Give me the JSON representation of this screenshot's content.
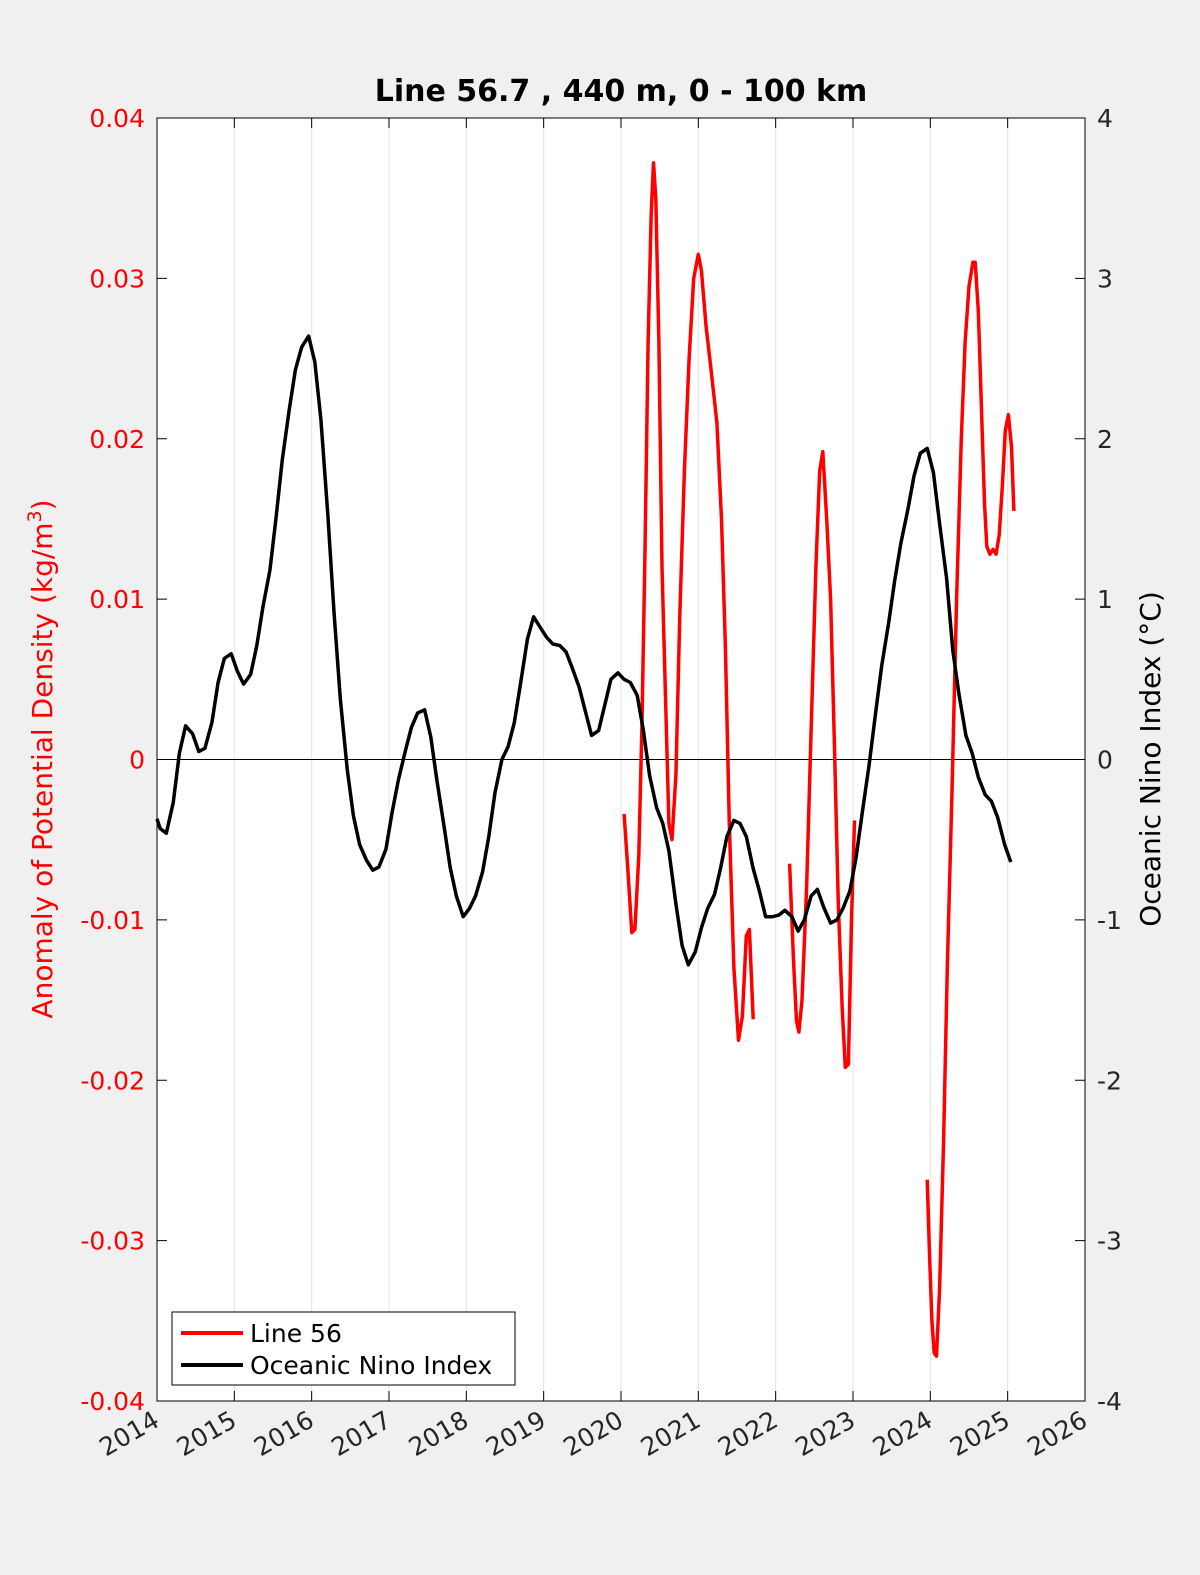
{
  "chart_data": {
    "type": "line",
    "title": "Line 56.7 , 440 m, 0 - 100 km",
    "xlim": [
      2014,
      2026
    ],
    "x_ticks": [
      "2014",
      "2015",
      "2016",
      "2017",
      "2018",
      "2019",
      "2020",
      "2021",
      "2022",
      "2023",
      "2024",
      "2025",
      "2026"
    ],
    "y_left": {
      "label": "Anomaly of Potential Density (kg/m",
      "label_sup": "3",
      "label_end": ")",
      "color": "#ff0000",
      "lim": [
        -0.04,
        0.04
      ],
      "ticks": [
        "-0.04",
        "-0.03",
        "-0.02",
        "-0.01",
        "0",
        "0.01",
        "0.02",
        "0.03",
        "0.04"
      ]
    },
    "y_right": {
      "label": "Oceanic Nino Index (°C)",
      "color": "#000000",
      "lim": [
        -4,
        4
      ],
      "ticks": [
        "-4",
        "-3",
        "-2",
        "-1",
        "0",
        "1",
        "2",
        "3",
        "4"
      ]
    },
    "grid": "vertical",
    "legend_position": "bottom-left",
    "series": [
      {
        "name": "Line 56",
        "axis": "left",
        "color": "#ff0000",
        "segments": [
          [
            [
              2020.04,
              -0.0034
            ],
            [
              2020.09,
              -0.007
            ],
            [
              2020.14,
              -0.0108
            ],
            [
              2020.18,
              -0.0106
            ],
            [
              2020.23,
              -0.006
            ],
            [
              2020.27,
              0.002
            ],
            [
              2020.31,
              0.013
            ],
            [
              2020.35,
              0.026
            ],
            [
              2020.39,
              0.034
            ],
            [
              2020.42,
              0.0372
            ],
            [
              2020.45,
              0.035
            ],
            [
              2020.49,
              0.026
            ],
            [
              2020.53,
              0.012
            ],
            [
              2020.58,
              0.003
            ],
            [
              2020.62,
              -0.004
            ],
            [
              2020.66,
              -0.005
            ],
            [
              2020.71,
              -0.001
            ],
            [
              2020.76,
              0.009
            ],
            [
              2020.82,
              0.018
            ],
            [
              2020.88,
              0.025
            ],
            [
              2020.94,
              0.03
            ],
            [
              2021.0,
              0.0315
            ],
            [
              2021.04,
              0.0305
            ],
            [
              2021.1,
              0.027
            ],
            [
              2021.16,
              0.0245
            ],
            [
              2021.24,
              0.021
            ],
            [
              2021.3,
              0.015
            ],
            [
              2021.35,
              0.007
            ],
            [
              2021.4,
              -0.004
            ],
            [
              2021.46,
              -0.013
            ],
            [
              2021.52,
              -0.0175
            ],
            [
              2021.57,
              -0.016
            ],
            [
              2021.62,
              -0.011
            ],
            [
              2021.66,
              -0.0106
            ],
            [
              2021.71,
              -0.0162
            ]
          ],
          [
            [
              2022.18,
              -0.0065
            ],
            [
              2022.23,
              -0.0125
            ],
            [
              2022.27,
              -0.0163
            ],
            [
              2022.3,
              -0.017
            ],
            [
              2022.34,
              -0.015
            ],
            [
              2022.4,
              -0.008
            ],
            [
              2022.46,
              0.002
            ],
            [
              2022.52,
              0.012
            ],
            [
              2022.57,
              0.018
            ],
            [
              2022.61,
              0.0192
            ],
            [
              2022.66,
              0.015
            ],
            [
              2022.71,
              0.01
            ],
            [
              2022.76,
              0.001
            ],
            [
              2022.81,
              -0.009
            ],
            [
              2022.86,
              -0.0155
            ],
            [
              2022.9,
              -0.0192
            ],
            [
              2022.94,
              -0.019
            ],
            [
              2022.98,
              -0.01
            ],
            [
              2023.02,
              -0.0038
            ]
          ],
          [
            [
              2023.96,
              -0.0262
            ],
            [
              2023.99,
              -0.031
            ],
            [
              2024.02,
              -0.035
            ],
            [
              2024.05,
              -0.037
            ],
            [
              2024.08,
              -0.0372
            ],
            [
              2024.12,
              -0.033
            ],
            [
              2024.17,
              -0.024
            ],
            [
              2024.22,
              -0.013
            ],
            [
              2024.28,
              -0.002
            ],
            [
              2024.34,
              0.01
            ],
            [
              2024.4,
              0.02
            ],
            [
              2024.45,
              0.026
            ],
            [
              2024.5,
              0.0295
            ],
            [
              2024.55,
              0.031
            ],
            [
              2024.58,
              0.031
            ],
            [
              2024.62,
              0.028
            ],
            [
              2024.66,
              0.022
            ],
            [
              2024.7,
              0.016
            ],
            [
              2024.73,
              0.0133
            ],
            [
              2024.77,
              0.0128
            ],
            [
              2024.81,
              0.0131
            ],
            [
              2024.85,
              0.0128
            ],
            [
              2024.89,
              0.014
            ],
            [
              2024.93,
              0.017
            ],
            [
              2024.97,
              0.0205
            ],
            [
              2025.01,
              0.0215
            ],
            [
              2025.05,
              0.0195
            ],
            [
              2025.08,
              0.0155
            ]
          ]
        ]
      },
      {
        "name": "Oceanic Nino Index",
        "axis": "right",
        "color": "#000000",
        "points": [
          [
            2014.0,
            -0.37
          ],
          [
            2014.04,
            -0.43
          ],
          [
            2014.12,
            -0.46
          ],
          [
            2014.21,
            -0.27
          ],
          [
            2014.29,
            0.04
          ],
          [
            2014.37,
            0.21
          ],
          [
            2014.46,
            0.16
          ],
          [
            2014.54,
            0.05
          ],
          [
            2014.62,
            0.07
          ],
          [
            2014.71,
            0.23
          ],
          [
            2014.79,
            0.48
          ],
          [
            2014.87,
            0.63
          ],
          [
            2014.96,
            0.66
          ],
          [
            2015.04,
            0.55
          ],
          [
            2015.12,
            0.47
          ],
          [
            2015.21,
            0.53
          ],
          [
            2015.29,
            0.71
          ],
          [
            2015.37,
            0.95
          ],
          [
            2015.46,
            1.18
          ],
          [
            2015.54,
            1.51
          ],
          [
            2015.62,
            1.87
          ],
          [
            2015.71,
            2.18
          ],
          [
            2015.79,
            2.43
          ],
          [
            2015.87,
            2.57
          ],
          [
            2015.96,
            2.64
          ],
          [
            2016.04,
            2.48
          ],
          [
            2016.12,
            2.12
          ],
          [
            2016.21,
            1.52
          ],
          [
            2016.29,
            0.91
          ],
          [
            2016.37,
            0.38
          ],
          [
            2016.46,
            -0.06
          ],
          [
            2016.54,
            -0.35
          ],
          [
            2016.62,
            -0.53
          ],
          [
            2016.71,
            -0.63
          ],
          [
            2016.79,
            -0.69
          ],
          [
            2016.87,
            -0.67
          ],
          [
            2016.96,
            -0.56
          ],
          [
            2017.04,
            -0.33
          ],
          [
            2017.12,
            -0.13
          ],
          [
            2017.21,
            0.05
          ],
          [
            2017.29,
            0.2
          ],
          [
            2017.37,
            0.29
          ],
          [
            2017.46,
            0.31
          ],
          [
            2017.54,
            0.14
          ],
          [
            2017.62,
            -0.13
          ],
          [
            2017.71,
            -0.41
          ],
          [
            2017.79,
            -0.67
          ],
          [
            2017.87,
            -0.85
          ],
          [
            2017.96,
            -0.98
          ],
          [
            2018.04,
            -0.93
          ],
          [
            2018.12,
            -0.85
          ],
          [
            2018.21,
            -0.7
          ],
          [
            2018.29,
            -0.48
          ],
          [
            2018.37,
            -0.21
          ],
          [
            2018.46,
            0.0
          ],
          [
            2018.54,
            0.08
          ],
          [
            2018.62,
            0.23
          ],
          [
            2018.71,
            0.5
          ],
          [
            2018.79,
            0.75
          ],
          [
            2018.87,
            0.89
          ],
          [
            2018.96,
            0.82
          ],
          [
            2019.04,
            0.76
          ],
          [
            2019.12,
            0.72
          ],
          [
            2019.21,
            0.71
          ],
          [
            2019.29,
            0.67
          ],
          [
            2019.37,
            0.57
          ],
          [
            2019.46,
            0.45
          ],
          [
            2019.54,
            0.3
          ],
          [
            2019.62,
            0.15
          ],
          [
            2019.71,
            0.18
          ],
          [
            2019.79,
            0.34
          ],
          [
            2019.87,
            0.5
          ],
          [
            2019.96,
            0.54
          ],
          [
            2020.04,
            0.5
          ],
          [
            2020.12,
            0.48
          ],
          [
            2020.21,
            0.4
          ],
          [
            2020.29,
            0.18
          ],
          [
            2020.37,
            -0.1
          ],
          [
            2020.46,
            -0.3
          ],
          [
            2020.54,
            -0.4
          ],
          [
            2020.62,
            -0.57
          ],
          [
            2020.71,
            -0.9
          ],
          [
            2020.79,
            -1.16
          ],
          [
            2020.87,
            -1.28
          ],
          [
            2020.96,
            -1.2
          ],
          [
            2021.04,
            -1.05
          ],
          [
            2021.12,
            -0.93
          ],
          [
            2021.21,
            -0.84
          ],
          [
            2021.29,
            -0.67
          ],
          [
            2021.37,
            -0.48
          ],
          [
            2021.46,
            -0.38
          ],
          [
            2021.54,
            -0.4
          ],
          [
            2021.62,
            -0.48
          ],
          [
            2021.71,
            -0.68
          ],
          [
            2021.79,
            -0.82
          ],
          [
            2021.87,
            -0.98
          ],
          [
            2021.96,
            -0.98
          ],
          [
            2022.04,
            -0.97
          ],
          [
            2022.12,
            -0.94
          ],
          [
            2022.21,
            -0.98
          ],
          [
            2022.29,
            -1.07
          ],
          [
            2022.37,
            -1.0
          ],
          [
            2022.46,
            -0.85
          ],
          [
            2022.54,
            -0.81
          ],
          [
            2022.62,
            -0.92
          ],
          [
            2022.71,
            -1.02
          ],
          [
            2022.79,
            -1.0
          ],
          [
            2022.87,
            -0.93
          ],
          [
            2022.96,
            -0.82
          ],
          [
            2023.04,
            -0.61
          ],
          [
            2023.12,
            -0.33
          ],
          [
            2023.21,
            -0.03
          ],
          [
            2023.29,
            0.28
          ],
          [
            2023.37,
            0.58
          ],
          [
            2023.46,
            0.85
          ],
          [
            2023.54,
            1.12
          ],
          [
            2023.62,
            1.35
          ],
          [
            2023.71,
            1.56
          ],
          [
            2023.79,
            1.77
          ],
          [
            2023.87,
            1.91
          ],
          [
            2023.96,
            1.94
          ],
          [
            2024.04,
            1.79
          ],
          [
            2024.12,
            1.47
          ],
          [
            2024.21,
            1.13
          ],
          [
            2024.29,
            0.68
          ],
          [
            2024.37,
            0.41
          ],
          [
            2024.46,
            0.15
          ],
          [
            2024.54,
            0.04
          ],
          [
            2024.62,
            -0.11
          ],
          [
            2024.71,
            -0.22
          ],
          [
            2024.79,
            -0.26
          ],
          [
            2024.87,
            -0.36
          ],
          [
            2024.96,
            -0.53
          ],
          [
            2025.04,
            -0.64
          ]
        ]
      }
    ]
  }
}
